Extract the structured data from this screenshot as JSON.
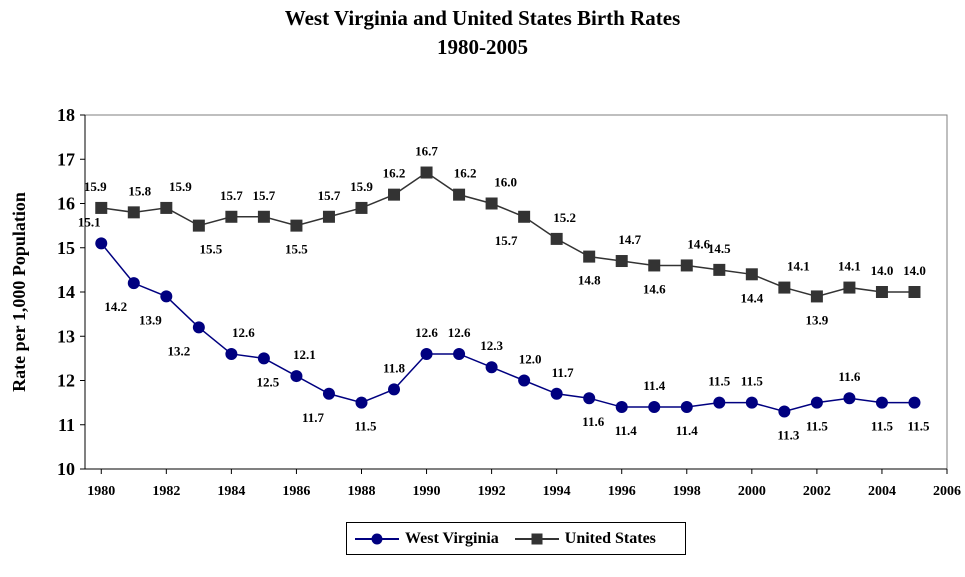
{
  "header": {
    "title_line1": "West Virginia and United States Birth Rates",
    "title_line2": "1980-2005"
  },
  "colors": {
    "west_virginia": "#000080",
    "united_states": "#333333",
    "plot_background": "#ffffff",
    "axis": "#000000"
  },
  "chart_data": {
    "type": "line",
    "title": "West Virginia and United States Birth Rates 1980-2005",
    "xlabel": "",
    "ylabel": "Rate per 1,000 Population",
    "xlim": [
      1979.5,
      2006
    ],
    "ylim": [
      10,
      18
    ],
    "x_ticks": [
      1980,
      1982,
      1984,
      1986,
      1988,
      1990,
      1992,
      1994,
      1996,
      1998,
      2000,
      2002,
      2004,
      2006
    ],
    "y_ticks": [
      10,
      11,
      12,
      13,
      14,
      15,
      16,
      17,
      18
    ],
    "x": [
      1980,
      1981,
      1982,
      1983,
      1984,
      1985,
      1986,
      1987,
      1988,
      1989,
      1990,
      1991,
      1992,
      1993,
      1994,
      1995,
      1996,
      1997,
      1998,
      1999,
      2000,
      2001,
      2002,
      2003,
      2004,
      2005
    ],
    "grid": false,
    "legend_position": "bottom",
    "series": [
      {
        "name": "West Virginia",
        "marker": "circle",
        "values": [
          15.1,
          14.2,
          13.9,
          13.2,
          12.6,
          12.5,
          12.1,
          11.7,
          11.5,
          11.8,
          12.6,
          12.6,
          12.3,
          12.0,
          11.7,
          11.6,
          11.4,
          11.4,
          11.4,
          11.5,
          11.5,
          11.3,
          11.5,
          11.6,
          11.5,
          11.5
        ],
        "labels": [
          "15.1",
          "14.2",
          "13.9",
          "13.2",
          "12.6",
          "12.5",
          "12.1",
          "11.7",
          "11.5",
          "11.8",
          "12.6",
          "12.6",
          "12.3",
          "12.0",
          "11.7",
          "11.6",
          "11.4",
          "11.4",
          "11.4",
          "11.5",
          "11.5",
          "11.3",
          "11.5",
          "11.6",
          "11.5",
          "11.5"
        ]
      },
      {
        "name": "United States",
        "marker": "square",
        "values": [
          15.9,
          15.8,
          15.9,
          15.5,
          15.7,
          15.7,
          15.5,
          15.7,
          15.9,
          16.2,
          16.7,
          16.2,
          16.0,
          15.7,
          15.2,
          14.8,
          14.7,
          14.6,
          14.6,
          14.5,
          14.4,
          14.1,
          13.9,
          14.1,
          14.0,
          14.0
        ],
        "labels": [
          "15.9",
          "15.8",
          "15.9",
          "15.5",
          "15.7",
          "15.7",
          "15.5",
          "15.7",
          "15.9",
          "16.2",
          "16.7",
          "16.2",
          "16.0",
          "15.7",
          "15.2",
          "14.8",
          "14.7",
          "14.6",
          "14.6",
          "14.5",
          "14.4",
          "14.1",
          "13.9",
          "14.1",
          "14.0",
          "14.0"
        ]
      }
    ]
  }
}
